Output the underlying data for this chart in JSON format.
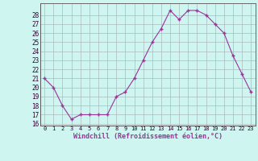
{
  "x": [
    0,
    1,
    2,
    3,
    4,
    5,
    6,
    7,
    8,
    9,
    10,
    11,
    12,
    13,
    14,
    15,
    16,
    17,
    18,
    19,
    20,
    21,
    22,
    23
  ],
  "y": [
    21.0,
    20.0,
    18.0,
    16.5,
    17.0,
    17.0,
    17.0,
    17.0,
    19.0,
    19.5,
    21.0,
    23.0,
    25.0,
    26.5,
    28.5,
    27.5,
    28.5,
    28.5,
    28.0,
    27.0,
    26.0,
    23.5,
    21.5,
    19.5
  ],
  "ylim_min": 16,
  "ylim_max": 29,
  "yticks": [
    16,
    17,
    18,
    19,
    20,
    21,
    22,
    23,
    24,
    25,
    26,
    27,
    28
  ],
  "xticks": [
    0,
    1,
    2,
    3,
    4,
    5,
    6,
    7,
    8,
    9,
    10,
    11,
    12,
    13,
    14,
    15,
    16,
    17,
    18,
    19,
    20,
    21,
    22,
    23
  ],
  "xlabel": "Windchill (Refroidissement éolien,°C)",
  "line_color": "#993399",
  "marker": "+",
  "bg_color": "#cef5f0",
  "grid_color": "#aabbbb",
  "axis_color": "#666666"
}
